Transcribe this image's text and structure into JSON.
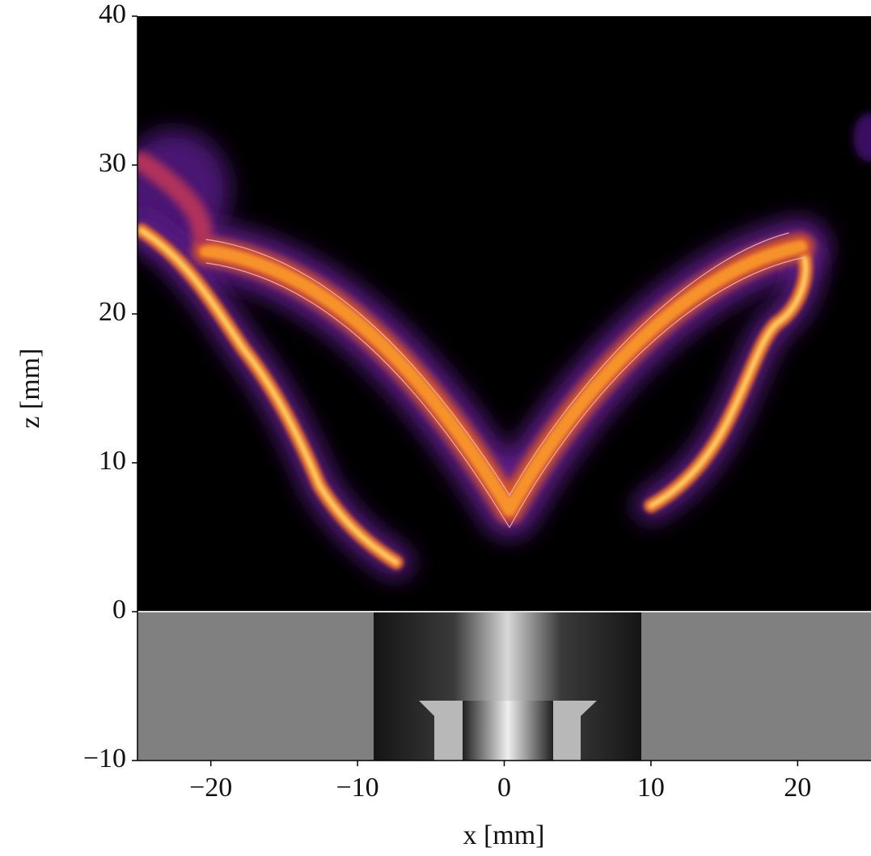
{
  "chart_data": {
    "type": "image",
    "x_label": "x [mm]",
    "y_label": "z [mm]",
    "xlim": [
      -25,
      25
    ],
    "xticks": [
      {
        "value": -20,
        "label": "−20"
      },
      {
        "value": -10,
        "label": "−10"
      },
      0,
      10,
      20
    ],
    "ylim": [
      -10,
      40
    ],
    "yticks": [
      {
        "value": -10,
        "label": "−10"
      },
      0,
      10,
      20,
      30,
      40
    ]
  }
}
